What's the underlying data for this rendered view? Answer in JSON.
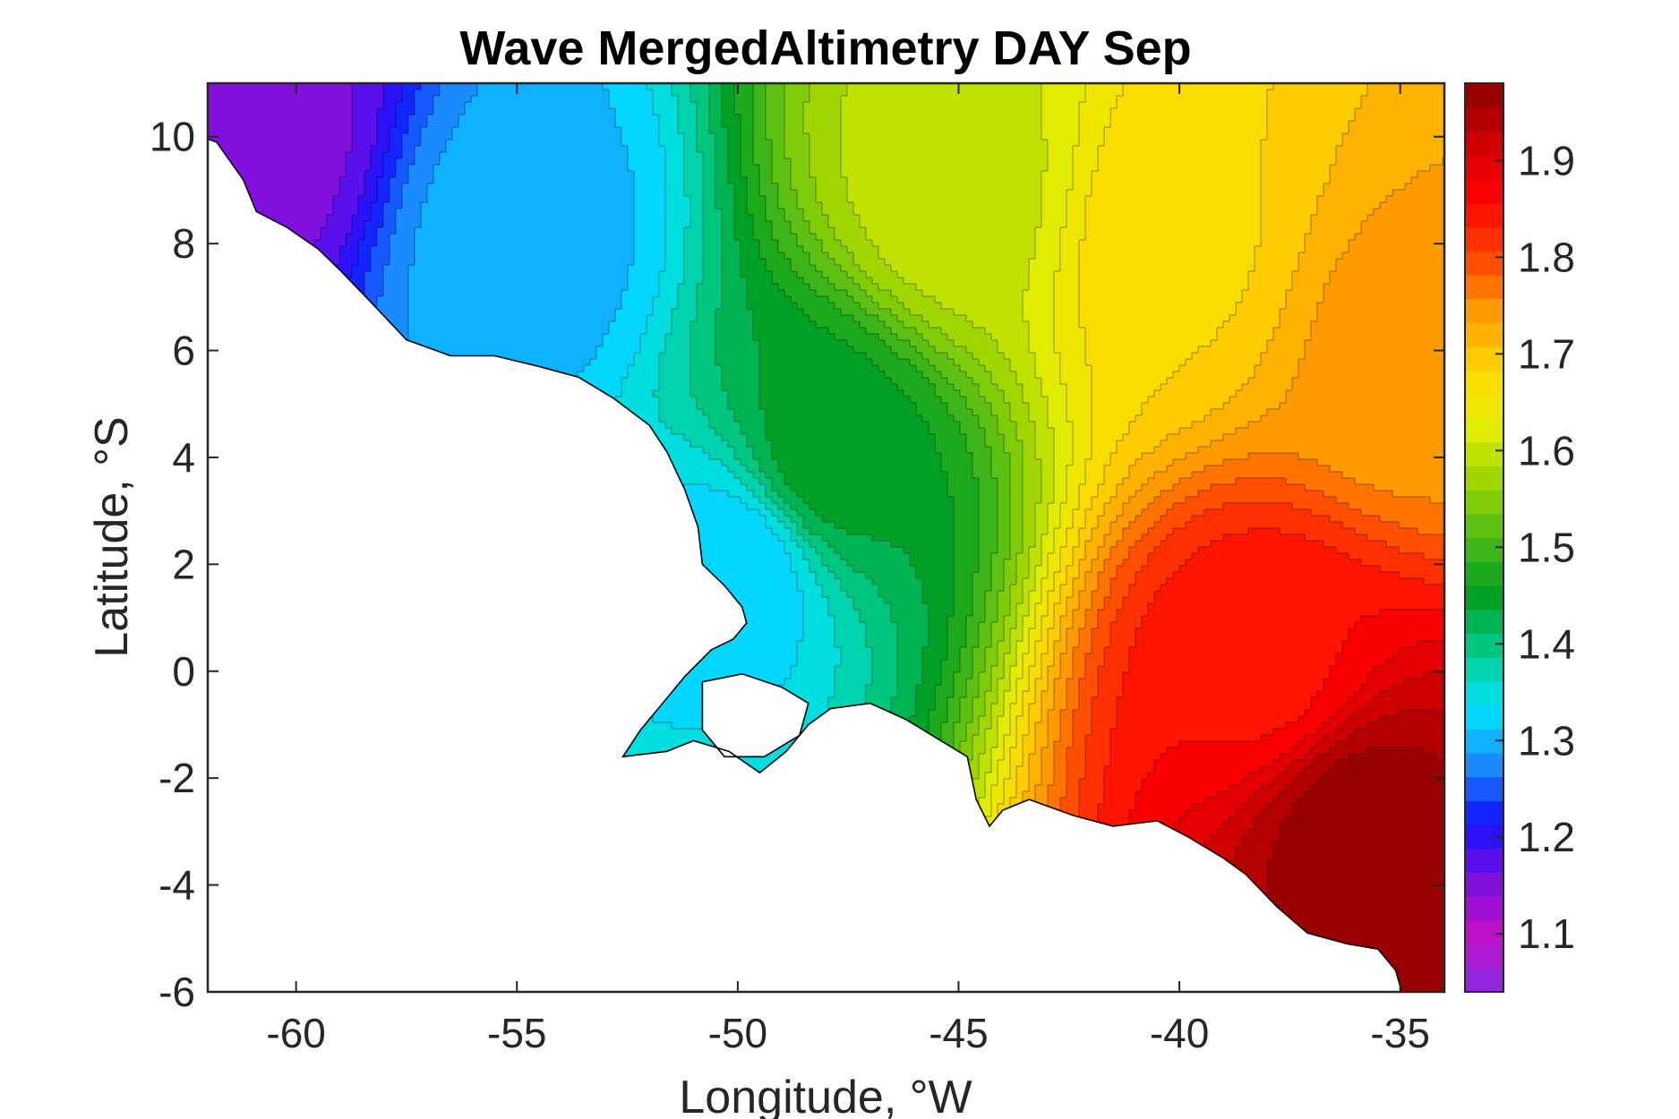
{
  "chart_data": {
    "type": "heatmap",
    "title": "Wave MergedAltimetry DAY Sep",
    "xlabel": "Longitude, °W",
    "ylabel": "Latitude, °S",
    "xlim": [
      -62,
      -34
    ],
    "ylim": [
      -6,
      11
    ],
    "xticks": [
      -60,
      -55,
      -50,
      -45,
      -40,
      -35
    ],
    "yticks": [
      -6,
      -4,
      -2,
      0,
      2,
      4,
      6,
      8,
      10
    ],
    "colorbar": {
      "range": [
        1.04,
        1.98
      ],
      "ticks": [
        1.1,
        1.2,
        1.3,
        1.4,
        1.5,
        1.6,
        1.7,
        1.8,
        1.9
      ],
      "colormap": [
        "#8a2be2",
        "#c010c8",
        "#7a10e0",
        "#1010ff",
        "#1a8cff",
        "#00e5ff",
        "#00cc88",
        "#00a020",
        "#4cbb17",
        "#9cd600",
        "#e8f000",
        "#ffd500",
        "#ff9a00",
        "#ff4000",
        "#ff0000",
        "#cc0000",
        "#8b0000"
      ]
    },
    "contour_levels": 38,
    "field_description_points": [
      {
        "lon": -61,
        "lat": 10,
        "value": 1.15
      },
      {
        "lon": -55,
        "lat": 8,
        "value": 1.3
      },
      {
        "lon": -50,
        "lat": 2,
        "value": 1.32
      },
      {
        "lon": -48,
        "lat": 4,
        "value": 1.45
      },
      {
        "lon": -45,
        "lat": 9,
        "value": 1.6
      },
      {
        "lon": -40,
        "lat": 8,
        "value": 1.68
      },
      {
        "lon": -35,
        "lat": 6,
        "value": 1.74
      },
      {
        "lon": -38,
        "lat": 0,
        "value": 1.85
      },
      {
        "lon": -36,
        "lat": -3,
        "value": 1.97
      }
    ]
  }
}
